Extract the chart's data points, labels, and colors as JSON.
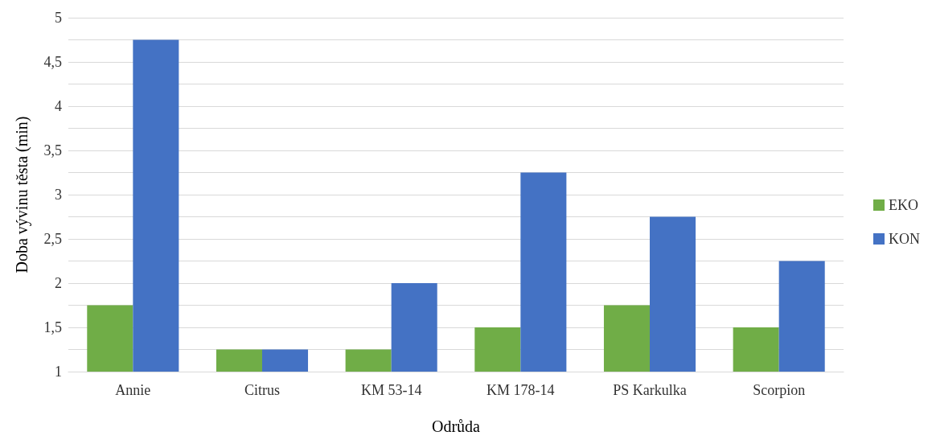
{
  "chart_data": {
    "type": "bar",
    "xlabel": "Odrůda",
    "ylabel": "Doba vývinu těsta (min)",
    "categories": [
      "Annie",
      "Citrus",
      "KM 53-14",
      "KM 178-14",
      "PS Karkulka",
      "Scorpion"
    ],
    "series": [
      {
        "name": "EKO",
        "color": "#70ad47",
        "values": [
          1.75,
          1.25,
          1.25,
          1.5,
          1.75,
          1.5
        ]
      },
      {
        "name": "KON",
        "color": "#4472c4",
        "values": [
          4.75,
          1.25,
          2,
          3.25,
          2.75,
          2.25
        ]
      }
    ],
    "ylim": [
      1,
      5
    ],
    "yticks": [
      1,
      {
        "value": 1.25,
        "label": null
      },
      {
        "value": 1.5,
        "label": "1,5"
      },
      {
        "value": 1.75,
        "label": null
      },
      2,
      {
        "value": 2.25,
        "label": null
      },
      {
        "value": 2.5,
        "label": "2,5"
      },
      {
        "value": 2.75,
        "label": null
      },
      3,
      {
        "value": 3.25,
        "label": null
      },
      {
        "value": 3.5,
        "label": "3,5"
      },
      {
        "value": 3.75,
        "label": null
      },
      4,
      {
        "value": 4.25,
        "label": null
      },
      {
        "value": 4.5,
        "label": "4,5"
      },
      {
        "value": 4.75,
        "label": null
      },
      5
    ],
    "grid": true,
    "legend": "right"
  }
}
